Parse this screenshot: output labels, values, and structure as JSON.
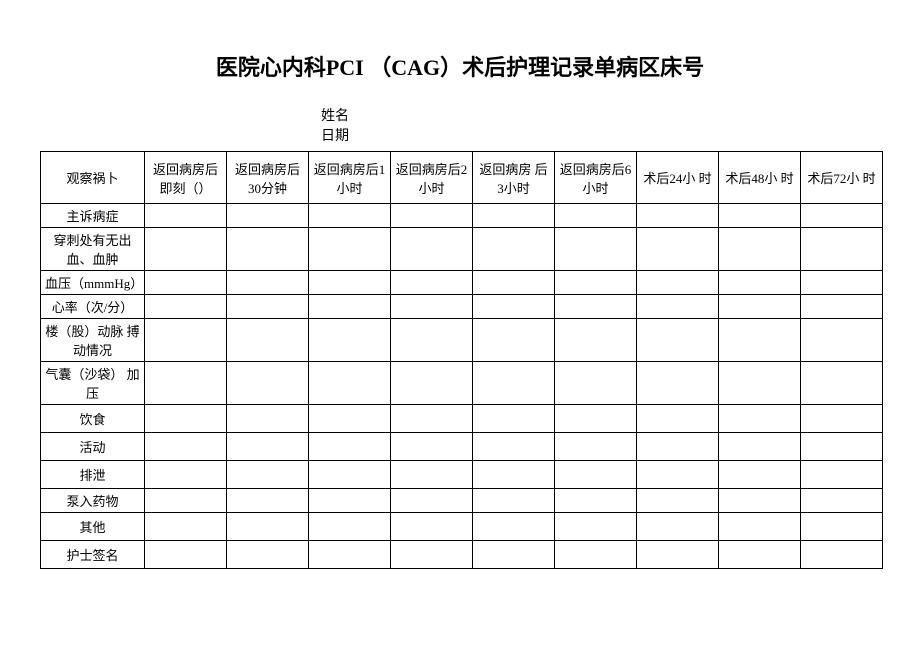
{
  "title": "医院心内科PCI （CAG）术后护理记录单病区床号",
  "meta": {
    "name_label": "姓名",
    "date_label": "日期"
  },
  "columns": [
    "观察祸卜",
    "返回病房后即刻（）",
    "返回病房后30分钟",
    "返回病房后1小时",
    "返回病房后2小时",
    "返回病房 后3小时",
    "返回病房后6小时",
    "术后24小 时",
    "术后48小 时",
    "术后72小 时"
  ],
  "rows": [
    "主诉病症",
    "穿刺处有无出血、血肿",
    "血压（mmmHg）",
    "心率（次/分）",
    "楼（股）动脉 搏动情况",
    "气囊（沙袋） 加压",
    "饮食",
    "活动",
    "排泄",
    "泵入药物",
    "其他",
    "护士签名"
  ],
  "row_heights": [
    "row-short",
    "row-tall",
    "row-short",
    "row-short",
    "row-tall",
    "row-tall",
    "row-med",
    "row-med",
    "row-med",
    "row-short",
    "row-med",
    "row-med"
  ]
}
